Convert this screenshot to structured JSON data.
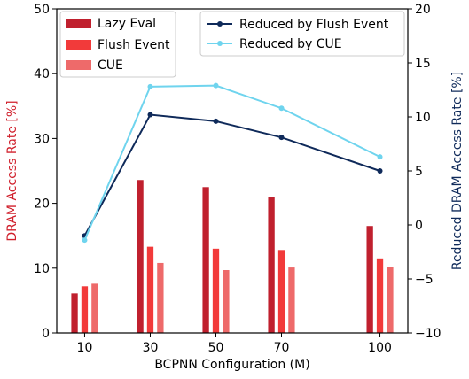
{
  "chart_data": {
    "type": "bar",
    "xlabel": "BCPNN Configuration (M)",
    "ylabel_left": "DRAM Access Rate [%]",
    "ylabel_right": "Reduced DRAM Access Rate [%]",
    "x_ticks": [
      "10",
      "30",
      "50",
      "70",
      "100"
    ],
    "x_values": [
      10,
      30,
      50,
      70,
      100
    ],
    "xlim": [
      1.5,
      108.5
    ],
    "ylim_left": [
      0,
      50
    ],
    "yticks_left": [
      "0",
      "10",
      "20",
      "30",
      "40",
      "50"
    ],
    "ylim_right": [
      -10,
      20
    ],
    "yticks_right": [
      "−10",
      "−5",
      "0",
      "5",
      "10",
      "15",
      "20"
    ],
    "grid": false,
    "legend_bars": "top-left",
    "legend_lines": "top-right",
    "bar_series": [
      {
        "name": "Lazy Eval",
        "color": "#c0202e",
        "values": [
          6.1,
          23.6,
          22.5,
          20.9,
          16.5
        ]
      },
      {
        "name": "Flush Event",
        "color": "#f23a3a",
        "values": [
          7.2,
          13.3,
          13.0,
          12.8,
          11.5
        ]
      },
      {
        "name": "CUE",
        "color": "#ee6a6a",
        "values": [
          7.6,
          10.8,
          9.7,
          10.1,
          10.2
        ]
      }
    ],
    "line_series": [
      {
        "name": "Reduced by Flush Event",
        "color": "#0f2a5a",
        "axis": "right",
        "values": [
          -1.0,
          10.2,
          9.6,
          8.1,
          5.0
        ]
      },
      {
        "name": "Reduced by CUE",
        "color": "#6fd4ee",
        "axis": "right",
        "values": [
          -1.4,
          12.8,
          12.9,
          10.8,
          6.3
        ]
      }
    ]
  }
}
